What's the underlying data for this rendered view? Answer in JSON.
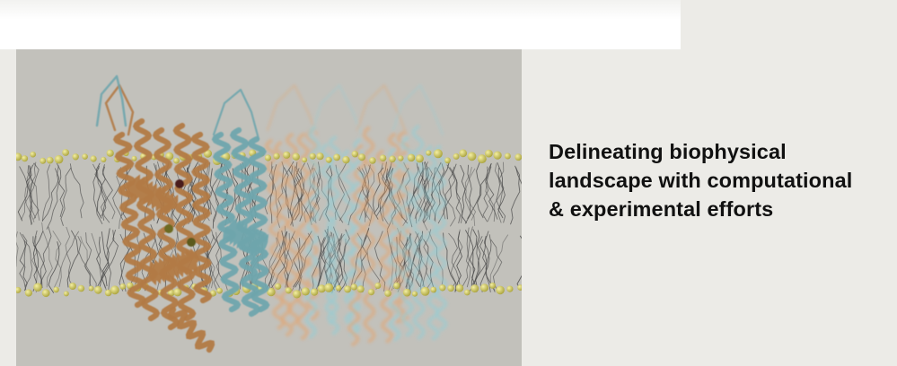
{
  "headline": {
    "lines": [
      "Delineating biophysical",
      "landscape with computational",
      "& experimental efforts"
    ]
  },
  "figure": {
    "subject": "protein-in-membrane-illustration",
    "colors": {
      "background": "#c2c1bb",
      "lipid_tails": "#4a4a4a",
      "lipid_heads": "#c9c25a",
      "protein_copper": "#b27a45",
      "protein_teal": "#6fa5ad",
      "protein_orange_faded": "#e8a266",
      "protein_cyan_faded": "#8fd0d8"
    }
  }
}
